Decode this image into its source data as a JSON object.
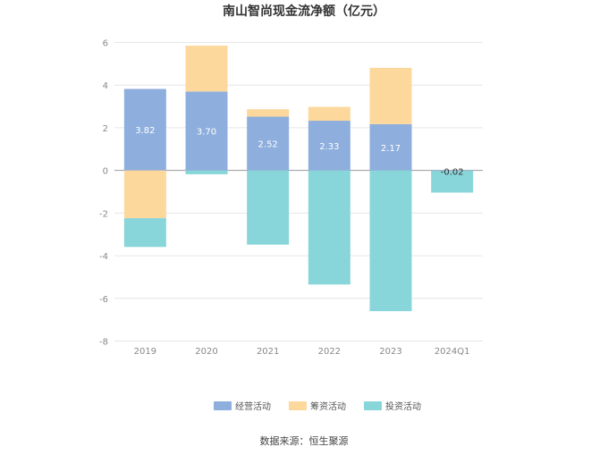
{
  "chart_data": {
    "type": "bar",
    "stacked": true,
    "title": "南山智尚现金流净额（亿元）",
    "categories": [
      "2019",
      "2020",
      "2021",
      "2022",
      "2023",
      "2024Q1"
    ],
    "series": [
      {
        "name": "经营活动",
        "color": "#8eaedd",
        "values": [
          3.82,
          3.7,
          2.52,
          2.33,
          2.17,
          -0.02
        ],
        "labels": [
          "3.82",
          "3.70",
          "2.52",
          "2.33",
          "2.17",
          "-0.02"
        ]
      },
      {
        "name": "筹资活动",
        "color": "#fdd89c",
        "values": [
          -2.24,
          2.15,
          0.35,
          0.65,
          2.64,
          0.0
        ]
      },
      {
        "name": "投资活动",
        "color": "#88d6da",
        "values": [
          -1.35,
          -0.18,
          -3.48,
          -5.35,
          -6.6,
          -1.02
        ]
      }
    ],
    "ylim": [
      -8,
      6
    ],
    "yticks": [
      6,
      4,
      2,
      0,
      -2,
      -4,
      -6,
      -8
    ],
    "grid": true,
    "legend_position": "bottom"
  },
  "source_text": "数据来源：恒生聚源"
}
